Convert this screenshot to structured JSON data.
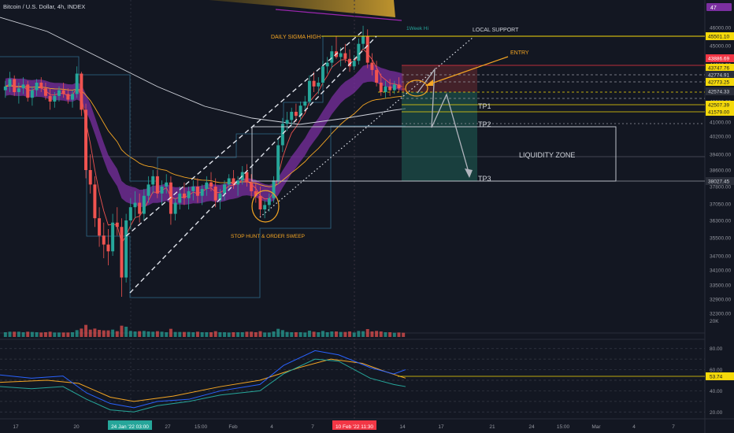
{
  "header": {
    "symbol_title": "Bitcoin / U.S. Dollar, 4h, INDEX",
    "badge": "47"
  },
  "annotations": {
    "daily_sigma_high": "DAILY SIGMA HIGH",
    "local_support": "LOCAL SUPPORT",
    "entry": "ENTRY",
    "week_hi": "1Week Hi",
    "tp1": "TP1",
    "tp2": "TP2",
    "tp3": "TP3",
    "liquidity_zone": "LIQUIDITY ZONE",
    "stop_hunt": "STOP HUNT & ORDER SWEEP"
  },
  "colors": {
    "background": "#131722",
    "sigma_band": "#7b2fa0",
    "annotation": "#f5a623",
    "target_zone": "#1e5a52",
    "stop_zone": "#6b2a30",
    "price_label_yellow": "#f5d90a",
    "price_label_red": "#f23645"
  },
  "chart_data": {
    "type": "candlestick",
    "title": "Bitcoin / U.S. Dollar, 4h, INDEX",
    "price_axis": {
      "ticks": [
        46000,
        45000,
        44000,
        43000,
        42000,
        41000,
        40200,
        39400,
        38600,
        37800,
        37050,
        36300,
        35500,
        34700,
        34100,
        33500,
        32900,
        32300
      ],
      "tick_labels": [
        "46000.00",
        "45000.00",
        "44000.00",
        "43000.00",
        "42000.00",
        "41000.00",
        "40200.00",
        "39400.00",
        "38600.00",
        "37800.00",
        "37050.00",
        "36300.00",
        "35500.00",
        "34700.00",
        "34100.00",
        "33500.00",
        "32900.00",
        "32300.00"
      ]
    },
    "price_labels": [
      {
        "value": "45501.10",
        "style": "yellow"
      },
      {
        "value": "43886.69",
        "style": "red"
      },
      {
        "value": "43747.76",
        "style": "yellow"
      },
      {
        "value": "42774.91",
        "style": "gray"
      },
      {
        "value": "42773.25",
        "style": "yellow"
      },
      {
        "value": "42574.33",
        "style": "gray"
      },
      {
        "value": "42507.39",
        "style": "yellow"
      },
      {
        "value": "41579.00",
        "style": "yellow"
      },
      {
        "value": "38027.45",
        "style": "gray"
      }
    ],
    "volume_axis_label": "20K",
    "oscillator": {
      "ticks": [
        80,
        60,
        40,
        20
      ],
      "tick_labels": [
        "80.00",
        "60.00",
        "40.00",
        "20.00"
      ],
      "current": "53.74"
    },
    "time_axis": [
      "17",
      "20",
      "24 Jan '22  03:00",
      "27",
      "15:00",
      "Feb",
      "4",
      "7",
      "10 Feb '22  11:30",
      "14",
      "17",
      "21",
      "24",
      "15:00",
      "Mar",
      "4",
      "7"
    ],
    "candles": [
      [
        42600,
        43100,
        42200,
        42800
      ],
      [
        42800,
        43600,
        42500,
        43200
      ],
      [
        43200,
        43400,
        42300,
        42500
      ],
      [
        42500,
        43000,
        41900,
        42700
      ],
      [
        42700,
        43300,
        42400,
        42900
      ],
      [
        42900,
        43100,
        42000,
        42200
      ],
      [
        42200,
        42800,
        41800,
        42600
      ],
      [
        42600,
        43200,
        42300,
        43000
      ],
      [
        43000,
        43300,
        42500,
        42700
      ],
      [
        42700,
        43000,
        42100,
        42300
      ],
      [
        42300,
        42700,
        41600,
        42000
      ],
      [
        42000,
        42500,
        41700,
        42300
      ],
      [
        42300,
        42800,
        42000,
        42600
      ],
      [
        42600,
        43000,
        42200,
        42400
      ],
      [
        42400,
        42700,
        41900,
        42100
      ],
      [
        42100,
        42600,
        41700,
        42400
      ],
      [
        42400,
        43900,
        42200,
        43500
      ],
      [
        43500,
        43600,
        41300,
        41600
      ],
      [
        41600,
        41900,
        38200,
        38600
      ],
      [
        38600,
        39400,
        37500,
        37900
      ],
      [
        37900,
        38300,
        36000,
        36400
      ],
      [
        36400,
        36900,
        35100,
        35600
      ],
      [
        35600,
        36200,
        34600,
        35200
      ],
      [
        35200,
        35900,
        34300,
        34900
      ],
      [
        34900,
        36600,
        34700,
        36200
      ],
      [
        36200,
        36900,
        35600,
        36000
      ],
      [
        36000,
        36400,
        33000,
        33800
      ],
      [
        33800,
        36600,
        33600,
        36300
      ],
      [
        36300,
        37300,
        35900,
        36900
      ],
      [
        36900,
        37600,
        36400,
        37100
      ],
      [
        37100,
        37500,
        36200,
        36600
      ],
      [
        36600,
        37700,
        36300,
        37400
      ],
      [
        37400,
        38300,
        37100,
        37900
      ],
      [
        37900,
        38600,
        37500,
        38300
      ],
      [
        38300,
        38600,
        37300,
        37500
      ],
      [
        37500,
        38100,
        37000,
        37800
      ],
      [
        37800,
        38400,
        37500,
        38000
      ],
      [
        38000,
        38300,
        36100,
        36600
      ],
      [
        36600,
        37300,
        36300,
        37100
      ],
      [
        37100,
        37800,
        36800,
        37500
      ],
      [
        37500,
        38000,
        37000,
        37300
      ],
      [
        37300,
        37800,
        36800,
        37600
      ],
      [
        37600,
        38100,
        37200,
        37800
      ],
      [
        37800,
        38200,
        37100,
        37400
      ],
      [
        37400,
        37900,
        37000,
        37700
      ],
      [
        37700,
        38300,
        37400,
        38000
      ],
      [
        38000,
        38500,
        37600,
        37800
      ],
      [
        37800,
        38200,
        36900,
        37200
      ],
      [
        37200,
        37700,
        36800,
        37500
      ],
      [
        37500,
        38100,
        37200,
        37900
      ],
      [
        37900,
        38400,
        37600,
        38200
      ],
      [
        38200,
        38600,
        37700,
        37900
      ],
      [
        37900,
        38300,
        37400,
        38100
      ],
      [
        38100,
        38800,
        37900,
        38500
      ],
      [
        38500,
        38900,
        37800,
        38000
      ],
      [
        38000,
        38400,
        37300,
        37600
      ],
      [
        37600,
        38000,
        37100,
        37400
      ],
      [
        37400,
        37800,
        36500,
        36800
      ],
      [
        36800,
        37200,
        36400,
        37000
      ],
      [
        37000,
        37500,
        36700,
        37300
      ],
      [
        37300,
        38300,
        37100,
        38100
      ],
      [
        38100,
        40100,
        37900,
        39800
      ],
      [
        39800,
        41200,
        39500,
        40900
      ],
      [
        40900,
        41500,
        40500,
        41100
      ],
      [
        41100,
        41700,
        40800,
        41500
      ],
      [
        41500,
        41900,
        41000,
        41300
      ],
      [
        41300,
        42000,
        41100,
        41800
      ],
      [
        41800,
        42300,
        41500,
        42000
      ],
      [
        42000,
        43400,
        41900,
        43100
      ],
      [
        43100,
        43600,
        42500,
        42800
      ],
      [
        42800,
        43300,
        42400,
        43000
      ],
      [
        43000,
        44200,
        42800,
        43900
      ],
      [
        43900,
        44400,
        43500,
        44100
      ],
      [
        44100,
        45000,
        43800,
        44700
      ],
      [
        44700,
        45500,
        44300,
        44400
      ],
      [
        44400,
        44900,
        43900,
        44600
      ],
      [
        44600,
        45100,
        44100,
        44300
      ],
      [
        44300,
        44800,
        43600,
        43900
      ],
      [
        43900,
        44500,
        43700,
        44200
      ],
      [
        44200,
        45400,
        44000,
        45100
      ],
      [
        45100,
        46100,
        44800,
        45500
      ],
      [
        45500,
        45900,
        43800,
        44100
      ],
      [
        44100,
        44600,
        43400,
        43700
      ],
      [
        43700,
        44200,
        42800,
        43000
      ],
      [
        43000,
        43500,
        42300,
        42500
      ],
      [
        42500,
        43100,
        42200,
        42800
      ],
      [
        42800,
        43200,
        42300,
        42600
      ],
      [
        42600,
        43100,
        42400,
        42900
      ],
      [
        42900,
        43300,
        42500,
        42700
      ],
      [
        42700,
        43000,
        42300,
        42600
      ]
    ]
  }
}
